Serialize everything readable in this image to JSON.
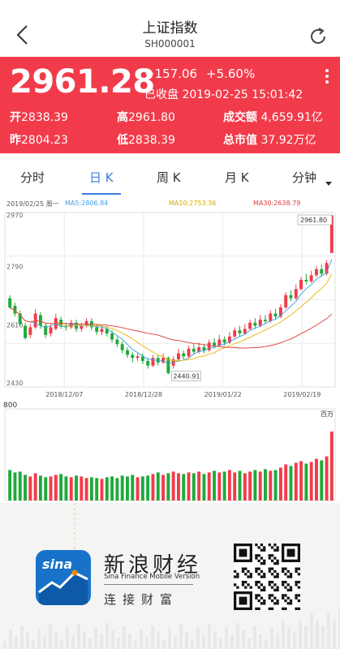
{
  "nav": {
    "title": "上证指数",
    "code": "SH000001"
  },
  "quote": {
    "price": "2961.28",
    "change": "+157.06",
    "change_pct": "+5.60%",
    "status": "已收盘 2019-02-25 15:01:42",
    "open_label": "开",
    "open_value": "2838.39",
    "high_label": "高",
    "high_value": "2961.80",
    "turnover_label": "成交额",
    "turnover_value": "4,659.91亿",
    "prev_label": "昨",
    "prev_value": "2804.23",
    "low_label": "低",
    "low_value": "2838.39",
    "mktcap_label": "总市值",
    "mktcap_value": "37.92万亿"
  },
  "tabs": [
    {
      "label": "分时"
    },
    {
      "label": "日 K"
    },
    {
      "label": "周 K"
    },
    {
      "label": "月 K"
    },
    {
      "label": "分钟"
    }
  ],
  "legend": {
    "date": "2019/02/25 周一",
    "ma5": "MA5:2806.84",
    "ma10": "MA10:2753.36",
    "ma30": "MA30:2638.79"
  },
  "colors": {
    "up": "#f23b4a",
    "down": "#1faa3a",
    "ma5": "#3aa0e0",
    "ma10": "#e8b400",
    "ma30": "#e03b3b",
    "accent": "#3a7de0"
  },
  "chart_data": {
    "type": "candlestick",
    "y_ticks": [
      "2970",
      "2790",
      "2610",
      "2430"
    ],
    "ylim": [
      2400,
      2970
    ],
    "x_ticks": [
      "2018/12/07",
      "2018/12/28",
      "2019/01/22",
      "2019/02/19"
    ],
    "price_high_label": "2961.80",
    "price_low_label": "2440.91",
    "volume_label": "800",
    "volume_unit": "百万",
    "candles": [
      [
        2690,
        2660,
        2700,
        2655
      ],
      [
        2665,
        2640,
        2675,
        2630
      ],
      [
        2640,
        2605,
        2650,
        2600
      ],
      [
        2600,
        2560,
        2610,
        2555
      ],
      [
        2570,
        2595,
        2605,
        2560
      ],
      [
        2595,
        2640,
        2655,
        2590
      ],
      [
        2635,
        2600,
        2645,
        2590
      ],
      [
        2600,
        2570,
        2610,
        2560
      ],
      [
        2575,
        2595,
        2605,
        2565
      ],
      [
        2590,
        2625,
        2640,
        2585
      ],
      [
        2620,
        2600,
        2630,
        2590
      ],
      [
        2600,
        2595,
        2610,
        2585
      ],
      [
        2595,
        2610,
        2620,
        2590
      ],
      [
        2610,
        2590,
        2620,
        2580
      ],
      [
        2590,
        2600,
        2610,
        2580
      ],
      [
        2600,
        2615,
        2625,
        2595
      ],
      [
        2615,
        2595,
        2625,
        2585
      ],
      [
        2595,
        2580,
        2605,
        2570
      ],
      [
        2580,
        2590,
        2600,
        2570
      ],
      [
        2590,
        2575,
        2600,
        2565
      ],
      [
        2575,
        2555,
        2585,
        2545
      ],
      [
        2555,
        2540,
        2565,
        2530
      ],
      [
        2540,
        2520,
        2550,
        2510
      ],
      [
        2520,
        2505,
        2530,
        2495
      ],
      [
        2505,
        2495,
        2515,
        2480
      ],
      [
        2495,
        2500,
        2510,
        2485
      ],
      [
        2500,
        2485,
        2510,
        2475
      ],
      [
        2485,
        2470,
        2495,
        2460
      ],
      [
        2470,
        2495,
        2505,
        2465
      ],
      [
        2495,
        2480,
        2505,
        2470
      ],
      [
        2480,
        2495,
        2510,
        2475
      ],
      [
        2495,
        2445,
        2500,
        2441
      ],
      [
        2470,
        2490,
        2500,
        2460
      ],
      [
        2490,
        2510,
        2525,
        2485
      ],
      [
        2510,
        2500,
        2520,
        2490
      ],
      [
        2500,
        2525,
        2535,
        2495
      ],
      [
        2525,
        2515,
        2540,
        2505
      ],
      [
        2515,
        2530,
        2545,
        2510
      ],
      [
        2530,
        2520,
        2540,
        2510
      ],
      [
        2520,
        2545,
        2555,
        2515
      ],
      [
        2545,
        2535,
        2560,
        2525
      ],
      [
        2535,
        2555,
        2570,
        2530
      ],
      [
        2555,
        2545,
        2565,
        2535
      ],
      [
        2545,
        2565,
        2580,
        2540
      ],
      [
        2565,
        2585,
        2595,
        2560
      ],
      [
        2585,
        2575,
        2600,
        2565
      ],
      [
        2575,
        2590,
        2605,
        2570
      ],
      [
        2590,
        2610,
        2620,
        2585
      ],
      [
        2610,
        2600,
        2625,
        2590
      ],
      [
        2600,
        2620,
        2635,
        2595
      ],
      [
        2620,
        2615,
        2635,
        2605
      ],
      [
        2615,
        2640,
        2650,
        2610
      ],
      [
        2640,
        2630,
        2655,
        2620
      ],
      [
        2630,
        2660,
        2670,
        2625
      ],
      [
        2660,
        2700,
        2710,
        2655
      ],
      [
        2700,
        2690,
        2715,
        2680
      ],
      [
        2690,
        2720,
        2735,
        2685
      ],
      [
        2720,
        2750,
        2760,
        2715
      ],
      [
        2750,
        2745,
        2770,
        2735
      ],
      [
        2745,
        2765,
        2780,
        2740
      ],
      [
        2765,
        2785,
        2795,
        2760
      ],
      [
        2785,
        2770,
        2800,
        2760
      ],
      [
        2770,
        2805,
        2815,
        2765
      ],
      [
        2838,
        2961,
        2962,
        2838
      ]
    ],
    "volumes": [
      0.38,
      0.35,
      0.36,
      0.32,
      0.3,
      0.34,
      0.31,
      0.29,
      0.3,
      0.32,
      0.33,
      0.3,
      0.29,
      0.31,
      0.3,
      0.28,
      0.29,
      0.28,
      0.27,
      0.29,
      0.3,
      0.28,
      0.31,
      0.3,
      0.32,
      0.29,
      0.3,
      0.31,
      0.33,
      0.35,
      0.32,
      0.34,
      0.36,
      0.34,
      0.33,
      0.35,
      0.34,
      0.36,
      0.33,
      0.35,
      0.37,
      0.35,
      0.36,
      0.38,
      0.35,
      0.37,
      0.34,
      0.36,
      0.38,
      0.36,
      0.39,
      0.37,
      0.38,
      0.41,
      0.45,
      0.43,
      0.47,
      0.49,
      0.46,
      0.48,
      0.52,
      0.5,
      0.55,
      0.86
    ]
  },
  "footer": {
    "logo_text": "sina",
    "brand_cn": "新浪财经",
    "brand_en": "Sina Finance Mobile Version",
    "slogan": "连接财富"
  }
}
